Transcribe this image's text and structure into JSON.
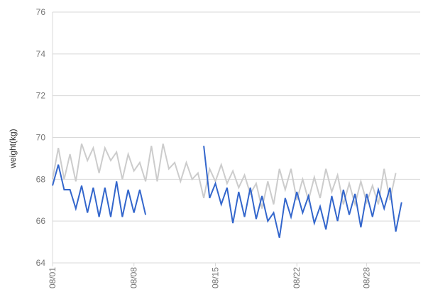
{
  "chart_data": {
    "type": "line",
    "ylabel": "weight(kg)",
    "xlabel": "",
    "ylim": [
      64,
      76
    ],
    "yticks": [
      64,
      66,
      68,
      70,
      72,
      74,
      76
    ],
    "x_range": [
      1,
      32.6
    ],
    "xticks": [
      {
        "day": 1,
        "label": "08/01"
      },
      {
        "day": 8,
        "label": "08/08"
      },
      {
        "day": 15,
        "label": "08/15"
      },
      {
        "day": 22,
        "label": "08/22"
      },
      {
        "day": 28,
        "label": "08/28"
      }
    ],
    "grid": true,
    "legend": "none",
    "colors": {
      "gray_series": "#cccccc",
      "blue_series": "#3366cc"
    },
    "series": [
      {
        "key": "gray",
        "points": [
          [
            1,
            68.0
          ],
          [
            1.5,
            69.5
          ],
          [
            2,
            68.0
          ],
          [
            2.5,
            69.2
          ],
          [
            3,
            67.9
          ],
          [
            3.5,
            69.7
          ],
          [
            4,
            68.9
          ],
          [
            4.5,
            69.5
          ],
          [
            5,
            68.3
          ],
          [
            5.5,
            69.5
          ],
          [
            6,
            68.9
          ],
          [
            6.5,
            69.3
          ],
          [
            7,
            68.0
          ],
          [
            7.5,
            69.2
          ],
          [
            8,
            68.4
          ],
          [
            8.5,
            68.8
          ],
          [
            9,
            67.9
          ],
          [
            9.5,
            69.6
          ],
          [
            10,
            67.9
          ],
          [
            10.5,
            69.7
          ],
          [
            11,
            68.5
          ],
          [
            11.5,
            68.8
          ],
          [
            12,
            67.9
          ],
          [
            12.5,
            68.8
          ],
          [
            13,
            68.0
          ],
          [
            13.5,
            68.3
          ],
          [
            14,
            67.1
          ],
          [
            14.5,
            68.5
          ],
          [
            15,
            67.9
          ],
          [
            15.5,
            68.7
          ],
          [
            16,
            67.8
          ],
          [
            16.5,
            68.4
          ],
          [
            17,
            67.6
          ],
          [
            17.5,
            68.2
          ],
          [
            18,
            67.3
          ],
          [
            18.5,
            67.8
          ],
          [
            19,
            66.6
          ],
          [
            19.5,
            67.9
          ],
          [
            20,
            66.8
          ],
          [
            20.5,
            68.5
          ],
          [
            21,
            67.5
          ],
          [
            21.5,
            68.5
          ],
          [
            22,
            67.0
          ],
          [
            22.5,
            68.0
          ],
          [
            23,
            67.0
          ],
          [
            23.5,
            68.1
          ],
          [
            24,
            67.1
          ],
          [
            24.5,
            68.5
          ],
          [
            25,
            67.4
          ],
          [
            25.5,
            68.2
          ],
          [
            26,
            66.8
          ],
          [
            26.5,
            67.8
          ],
          [
            27,
            66.8
          ],
          [
            27.5,
            67.9
          ],
          [
            28,
            66.9
          ],
          [
            28.5,
            67.7
          ],
          [
            29,
            66.8
          ],
          [
            29.5,
            68.5
          ],
          [
            30,
            67.0
          ],
          [
            30.5,
            68.3
          ]
        ]
      },
      {
        "key": "blue",
        "segments": [
          [
            [
              1,
              67.7
            ],
            [
              1.5,
              68.7
            ],
            [
              2,
              67.5
            ],
            [
              2.5,
              67.5
            ],
            [
              3,
              66.6
            ],
            [
              3.5,
              67.7
            ],
            [
              4,
              66.4
            ],
            [
              4.5,
              67.6
            ],
            [
              5,
              66.2
            ],
            [
              5.5,
              67.6
            ],
            [
              6,
              66.2
            ],
            [
              6.5,
              67.9
            ],
            [
              7,
              66.2
            ],
            [
              7.5,
              67.5
            ],
            [
              8,
              66.4
            ],
            [
              8.5,
              67.5
            ],
            [
              9,
              66.3
            ]
          ],
          [
            [
              14,
              69.6
            ],
            [
              14.5,
              67.1
            ],
            [
              15,
              67.8
            ],
            [
              15.5,
              66.8
            ],
            [
              16,
              67.6
            ],
            [
              16.5,
              65.9
            ],
            [
              17,
              67.4
            ],
            [
              17.5,
              66.2
            ],
            [
              18,
              67.6
            ],
            [
              18.5,
              66.1
            ],
            [
              19,
              67.2
            ],
            [
              19.5,
              66.0
            ],
            [
              20,
              66.4
            ],
            [
              20.5,
              65.2
            ],
            [
              21,
              67.1
            ],
            [
              21.5,
              66.2
            ],
            [
              22,
              67.4
            ],
            [
              22.5,
              66.4
            ],
            [
              23,
              67.2
            ],
            [
              23.5,
              65.9
            ],
            [
              24,
              66.7
            ],
            [
              24.5,
              65.6
            ],
            [
              25,
              67.2
            ],
            [
              25.5,
              66.0
            ],
            [
              26,
              67.5
            ],
            [
              26.5,
              66.3
            ],
            [
              27,
              67.3
            ],
            [
              27.5,
              65.7
            ],
            [
              28,
              67.3
            ],
            [
              28.5,
              66.2
            ],
            [
              29,
              67.5
            ],
            [
              29.5,
              66.6
            ],
            [
              30,
              67.6
            ],
            [
              30.5,
              65.5
            ],
            [
              31,
              66.9
            ]
          ]
        ]
      }
    ]
  }
}
